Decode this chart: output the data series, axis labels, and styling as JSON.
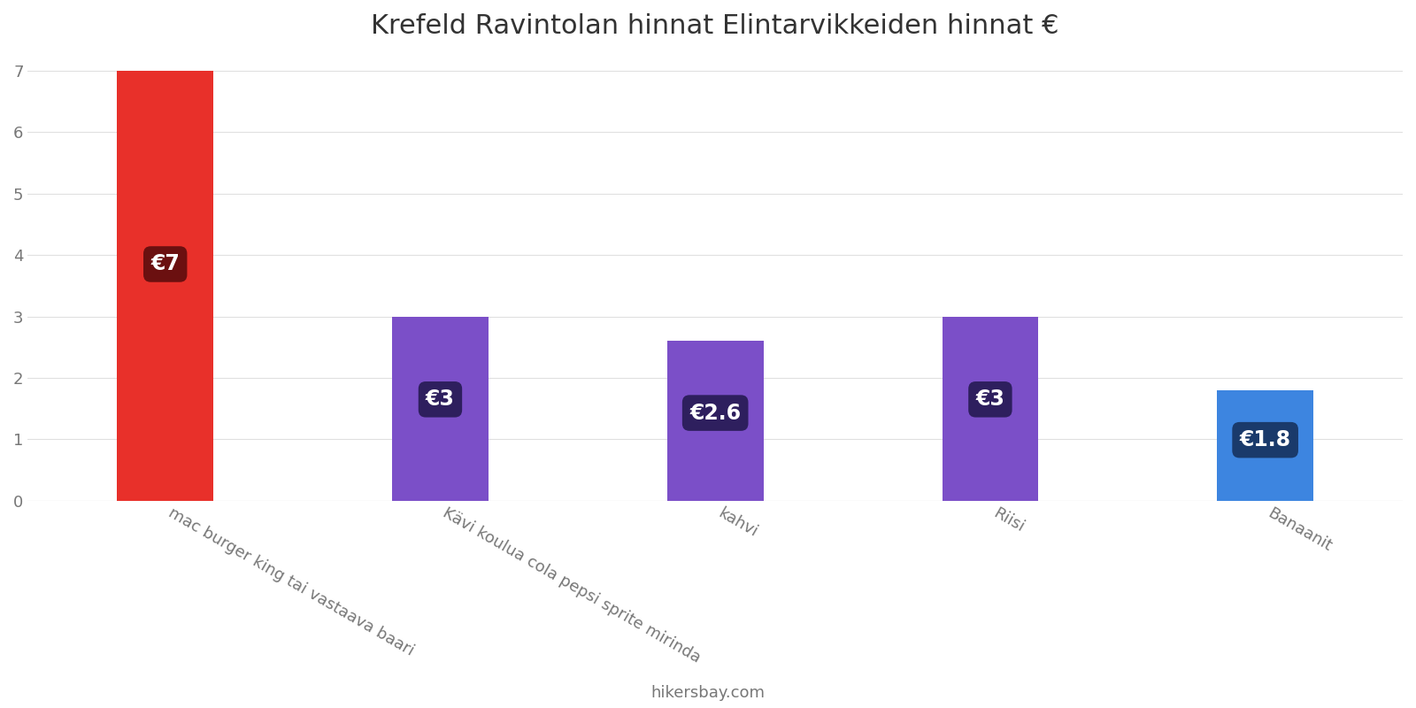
{
  "title": "Krefeld Ravintolan hinnat Elintarvikkeiden hinnat €",
  "categories": [
    "mac burger king tai vastaava baari",
    "Kävi koulua cola pepsi sprite mirinda",
    "kahvi",
    "Riisi",
    "Banaanit"
  ],
  "values": [
    7,
    3,
    2.6,
    3,
    1.8
  ],
  "bar_colors": [
    "#e8302a",
    "#7b4fc8",
    "#7b4fc8",
    "#7b4fc8",
    "#3d85e0"
  ],
  "label_texts": [
    "€7",
    "€3",
    "€2.6",
    "€3",
    "€1.8"
  ],
  "label_bg_colors": [
    "#6b1010",
    "#2e1f5e",
    "#2e1f5e",
    "#2e1f5e",
    "#1a3a6b"
  ],
  "ylim": [
    0,
    7.2
  ],
  "yticks": [
    0,
    1,
    2,
    3,
    4,
    5,
    6,
    7
  ],
  "footer_text": "hikersbay.com",
  "title_fontsize": 22,
  "tick_fontsize": 13,
  "label_fontsize": 17,
  "footer_fontsize": 13,
  "background_color": "#ffffff",
  "grid_color": "#e0e0e0",
  "text_color": "#777777",
  "bar_width": 0.35,
  "x_positions": [
    0,
    1,
    2,
    3,
    4
  ]
}
